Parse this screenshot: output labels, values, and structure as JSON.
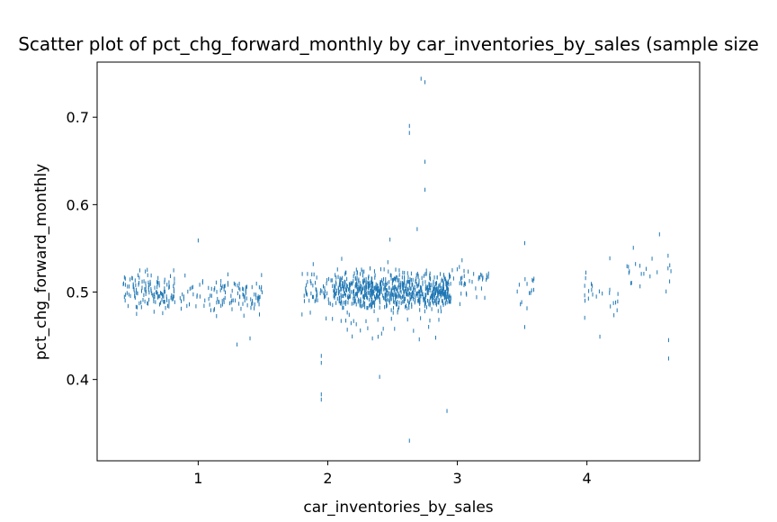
{
  "chart_data": {
    "type": "scatter",
    "title": "Scatter plot of pct_chg_forward_monthly by car_inventories_by_sales (sample size",
    "xlabel": "car_inventories_by_sales",
    "ylabel": "pct_chg_forward_monthly",
    "xlim": [
      0.22,
      4.87
    ],
    "ylim": [
      0.307,
      0.763
    ],
    "xticks": [
      1,
      2,
      3,
      4
    ],
    "yticks": [
      0.4,
      0.5,
      0.6,
      0.7
    ],
    "xtick_labels": [
      "1",
      "2",
      "3",
      "4"
    ],
    "ytick_labels": [
      "0.4",
      "0.5",
      "0.6",
      "0.7"
    ],
    "grid": false,
    "marker": "vertical tick",
    "color": "#1f77b4",
    "notable_points": [
      {
        "x": 2.72,
        "y": 0.744
      },
      {
        "x": 2.75,
        "y": 0.74
      },
      {
        "x": 2.63,
        "y": 0.69
      },
      {
        "x": 2.63,
        "y": 0.682
      },
      {
        "x": 2.75,
        "y": 0.649
      },
      {
        "x": 2.75,
        "y": 0.617
      },
      {
        "x": 2.69,
        "y": 0.572
      },
      {
        "x": 1.0,
        "y": 0.559
      },
      {
        "x": 2.48,
        "y": 0.56
      },
      {
        "x": 3.52,
        "y": 0.556
      },
      {
        "x": 4.56,
        "y": 0.566
      },
      {
        "x": 1.95,
        "y": 0.427
      },
      {
        "x": 1.95,
        "y": 0.419
      },
      {
        "x": 1.95,
        "y": 0.383
      },
      {
        "x": 1.95,
        "y": 0.377
      },
      {
        "x": 2.4,
        "y": 0.403
      },
      {
        "x": 2.92,
        "y": 0.364
      },
      {
        "x": 2.63,
        "y": 0.33
      },
      {
        "x": 3.52,
        "y": 0.46
      },
      {
        "x": 4.63,
        "y": 0.445
      },
      {
        "x": 4.63,
        "y": 0.424
      },
      {
        "x": 4.1,
        "y": 0.449
      },
      {
        "x": 1.3,
        "y": 0.44
      },
      {
        "x": 1.4,
        "y": 0.447
      }
    ],
    "clusters": [
      {
        "x_min": 0.42,
        "x_max": 0.82,
        "y_center": 0.5,
        "spread": 0.018,
        "n": 140
      },
      {
        "x_min": 0.86,
        "x_max": 1.12,
        "y_center": 0.5,
        "spread": 0.015,
        "n": 30
      },
      {
        "x_min": 1.12,
        "x_max": 1.5,
        "y_center": 0.497,
        "spread": 0.018,
        "n": 90
      },
      {
        "x_min": 1.8,
        "x_max": 2.05,
        "y_center": 0.5,
        "spread": 0.02,
        "n": 60
      },
      {
        "x_min": 2.05,
        "x_max": 2.95,
        "y_center": 0.502,
        "spread": 0.016,
        "n": 700
      },
      {
        "x_min": 2.1,
        "x_max": 2.9,
        "y_center": 0.49,
        "spread": 0.035,
        "n": 120
      },
      {
        "x_min": 2.95,
        "x_max": 3.25,
        "y_center": 0.51,
        "spread": 0.015,
        "n": 40
      },
      {
        "x_min": 3.45,
        "x_max": 3.6,
        "y_center": 0.505,
        "spread": 0.02,
        "n": 14
      },
      {
        "x_min": 3.98,
        "x_max": 4.25,
        "y_center": 0.502,
        "spread": 0.022,
        "n": 25
      },
      {
        "x_min": 4.3,
        "x_max": 4.65,
        "y_center": 0.52,
        "spread": 0.02,
        "n": 22
      }
    ]
  }
}
